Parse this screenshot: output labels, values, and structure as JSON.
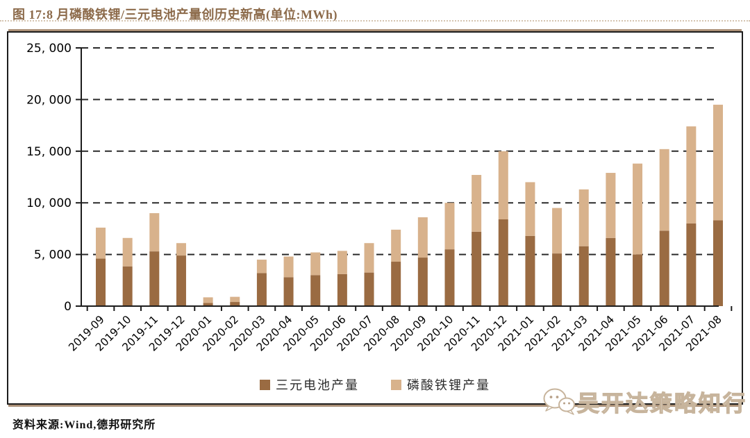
{
  "title": "图 17:8 月磷酸铁锂/三元电池产量创历史新高(单位:MWh)",
  "source": "资料来源:Wind,德邦研究所",
  "watermark": {
    "text": "吴开达策略知行",
    "icon": "wechat-bubbles-icon"
  },
  "colors": {
    "title": "#8C6A4A",
    "ternary": "#9A6B42",
    "lfp": "#D8B28C",
    "grid": "#2a2a2a",
    "axis": "#1c1c1c",
    "frame_shadow": "#AB9077"
  },
  "chart_data": {
    "type": "bar",
    "stacked": true,
    "title": "8 月磷酸铁锂/三元电池产量创历史新高",
    "unit": "MWh",
    "categories": [
      "2019-09",
      "2019-10",
      "2019-11",
      "2019-12",
      "2020-01",
      "2020-02",
      "2020-03",
      "2020-04",
      "2020-05",
      "2020-06",
      "2020-07",
      "2020-08",
      "2020-09",
      "2020-10",
      "2020-11",
      "2020-12",
      "2021-01",
      "2021-02",
      "2021-03",
      "2021-04",
      "2021-05",
      "2021-06",
      "2021-07",
      "2021-08"
    ],
    "series": [
      {
        "name": "三元电池产量",
        "color": "#9A6B42",
        "values": [
          4600,
          3850,
          5300,
          4900,
          300,
          400,
          3200,
          2800,
          3000,
          3100,
          3250,
          4300,
          4700,
          5500,
          7200,
          8400,
          6800,
          5100,
          5800,
          6600,
          5000,
          7300,
          8000,
          8300
        ]
      },
      {
        "name": "磷酸铁锂产量",
        "color": "#D8B28C",
        "values": [
          3000,
          2750,
          3700,
          1200,
          550,
          500,
          1300,
          2000,
          2200,
          2250,
          2850,
          3100,
          3900,
          4500,
          5500,
          6600,
          5200,
          4400,
          5500,
          6300,
          8800,
          7900,
          9400,
          11200
        ]
      }
    ],
    "ylim": [
      0,
      25000
    ],
    "ytick_interval": 5000,
    "ytick_labels": [
      "0",
      "5, 000",
      "10, 000",
      "15, 000",
      "20, 000",
      "25, 000"
    ],
    "grid": "horizontal-dashed",
    "legend_position": "bottom"
  }
}
